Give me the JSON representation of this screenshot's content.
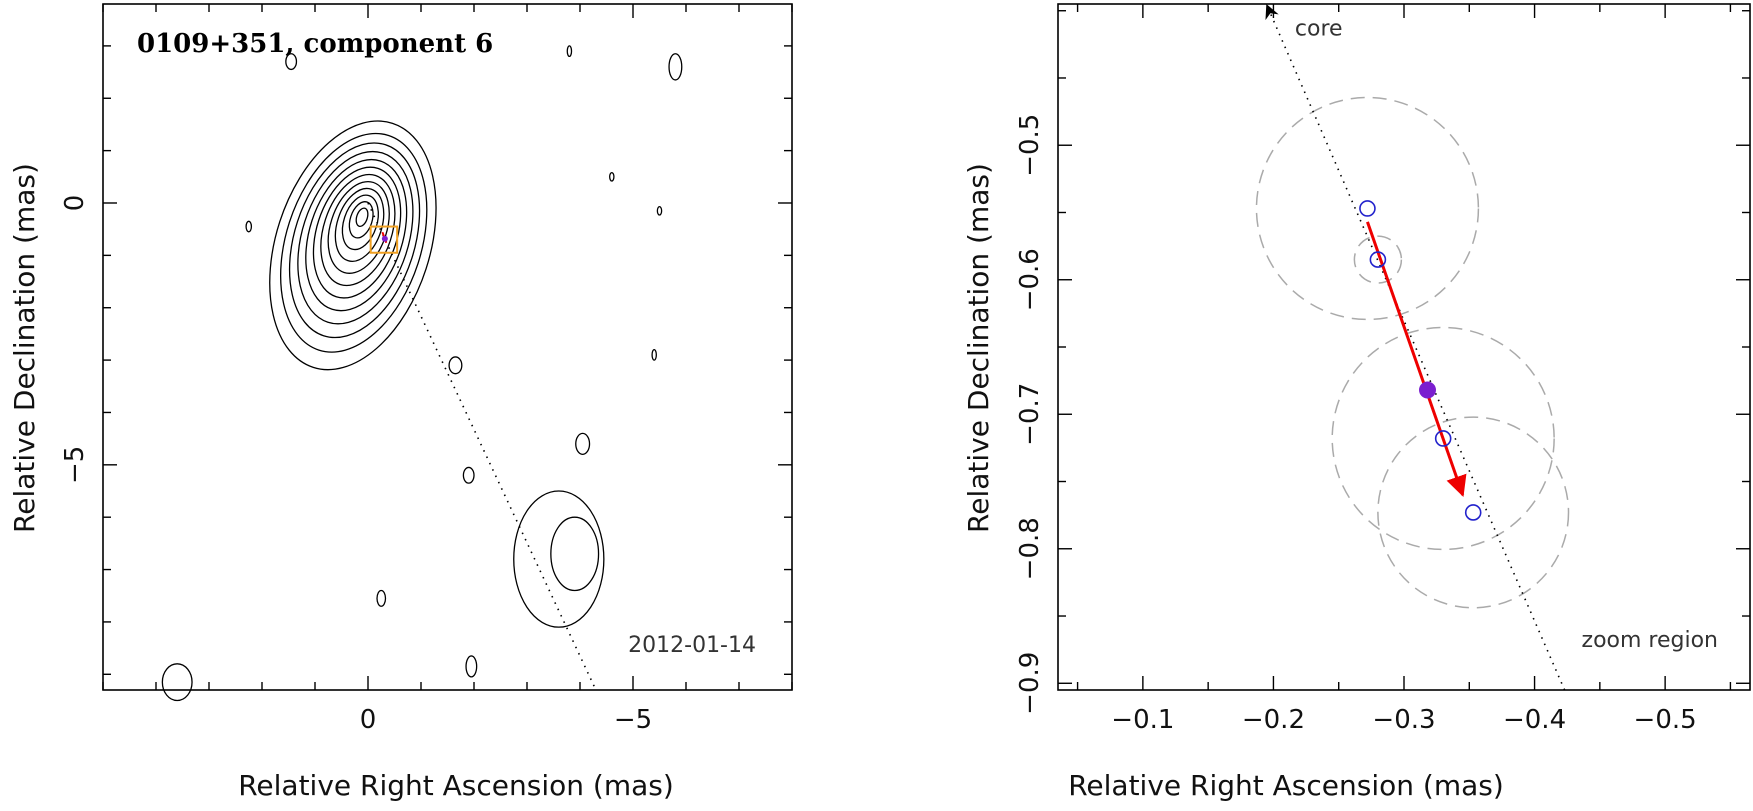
{
  "chart_data": [
    {
      "type": "scatter",
      "title": "0109+351, component 6",
      "date_label": "2012-01-14",
      "xlabel": "Relative Right Ascension (mas)",
      "ylabel": "Relative Declination (mas)",
      "xlim": [
        5,
        -8
      ],
      "ylim": [
        -9.3,
        3.8
      ],
      "x_major_ticks": [
        0,
        -5
      ],
      "y_major_ticks": [
        0,
        -5
      ],
      "x_minor_step": 1,
      "y_minor_step": 1,
      "core_contours": {
        "center": [
          0.25,
          -0.7
        ],
        "levels": 12,
        "rx_max": 1.45,
        "ry_max": 2.45,
        "rx_min": 0.1,
        "ry_min": 0.18,
        "tilt_deg": 18
      },
      "contour_islands": [
        {
          "x": -3.9,
          "y": -6.7,
          "rx": 0.45,
          "ry": 0.7
        },
        {
          "x": -3.6,
          "y": -6.8,
          "rx": 0.85,
          "ry": 1.3
        },
        {
          "x": -4.05,
          "y": -4.6,
          "rx": 0.13,
          "ry": 0.2
        },
        {
          "x": -1.65,
          "y": -3.1,
          "rx": 0.12,
          "ry": 0.16
        },
        {
          "x": -1.9,
          "y": -5.2,
          "rx": 0.1,
          "ry": 0.15
        },
        {
          "x": -0.25,
          "y": -7.55,
          "rx": 0.08,
          "ry": 0.15
        },
        {
          "x": -1.95,
          "y": -8.85,
          "rx": 0.1,
          "ry": 0.2
        },
        {
          "x": 3.6,
          "y": -9.15,
          "rx": 0.28,
          "ry": 0.35
        },
        {
          "x": 1.45,
          "y": 2.7,
          "rx": 0.1,
          "ry": 0.15
        },
        {
          "x": -5.8,
          "y": 2.6,
          "rx": 0.12,
          "ry": 0.25
        },
        {
          "x": 2.25,
          "y": -0.45,
          "rx": 0.05,
          "ry": 0.1
        },
        {
          "x": -3.8,
          "y": 2.9,
          "rx": 0.04,
          "ry": 0.1
        },
        {
          "x": -4.6,
          "y": 0.5,
          "rx": 0.04,
          "ry": 0.08
        },
        {
          "x": -5.5,
          "y": -0.15,
          "rx": 0.04,
          "ry": 0.08
        },
        {
          "x": -5.4,
          "y": -2.9,
          "rx": 0.04,
          "ry": 0.1
        }
      ],
      "ridge_line": [
        [
          0,
          0
        ],
        [
          -4.3,
          -9.3
        ]
      ],
      "zoom_box": {
        "x0": -0.05,
        "x1": -0.55,
        "y0": -0.45,
        "y1": -0.95
      }
    },
    {
      "type": "scatter",
      "xlabel": "Relative Right Ascension (mas)",
      "ylabel": "Relative Declination (mas)",
      "xlim": [
        -0.035,
        -0.565
      ],
      "ylim": [
        -0.905,
        -0.395
      ],
      "x_major_ticks": [
        -0.1,
        -0.2,
        -0.3,
        -0.4,
        -0.5
      ],
      "y_major_ticks": [
        -0.5,
        -0.6,
        -0.7,
        -0.8,
        -0.9
      ],
      "x_minor_step": 0.05,
      "y_minor_step": 0.05,
      "annotations": [
        "core",
        "zoom region"
      ],
      "positions": [
        {
          "x": -0.272,
          "y": -0.547,
          "err": 0.085
        },
        {
          "x": -0.28,
          "y": -0.585,
          "err": 0.018
        },
        {
          "x": -0.33,
          "y": -0.718,
          "err": 0.085
        },
        {
          "x": -0.353,
          "y": -0.773,
          "err": 0.073
        }
      ],
      "mean_position": {
        "x": -0.318,
        "y": -0.682
      },
      "velocity_vector": {
        "from": [
          -0.272,
          -0.557
        ],
        "to": [
          -0.345,
          -0.76
        ]
      },
      "direction_line": [
        [
          -0.195,
          -0.396
        ],
        [
          -0.423,
          -0.905
        ]
      ],
      "colors": {
        "positions": "#2222cc",
        "mean": "#7b1fcf",
        "vector": "#ee0000",
        "error": "#aaaaaa",
        "zoom_box": "#f0a020"
      }
    }
  ]
}
